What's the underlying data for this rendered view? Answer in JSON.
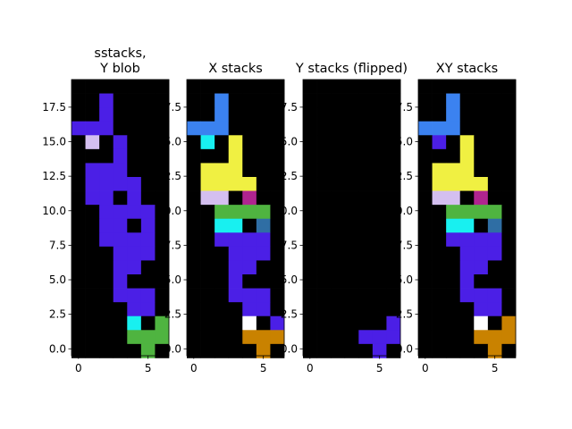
{
  "colors": {
    "background": "#000000",
    "purple": "#4b1fe6",
    "blue": "#3b82f0",
    "lavender": "#d4bff0",
    "cyan": "#18f0f0",
    "yellow": "#f0f042",
    "magenta": "#b0248f",
    "green": "#4fb440",
    "steel": "#2f6ea4",
    "white": "#ffffff",
    "orange": "#c98200"
  },
  "chart_data": [
    {
      "type": "heatmap",
      "title": "sstacks,\nY blob",
      "xticks": [
        "0",
        "5"
      ],
      "yticks": [
        "0.0",
        "2.5",
        "5.0",
        "7.5",
        "10.0",
        "12.5",
        "15.0",
        "17.5"
      ],
      "xlim": [
        -0.5,
        6.5
      ],
      "ylim": [
        19.5,
        -0.5
      ],
      "grid": [
        ".......",
        "..P....",
        "..P....",
        "PPP....",
        ".L.P...",
        "...P...",
        ".PPP...",
        ".PPPP..",
        ".PP.P..",
        "..PPPP.",
        "..PP.P.",
        "..PPPP.",
        "...PPP.",
        "...PP..",
        "...P...",
        "...PPP.",
        "....PP.",
        "....C.G",
        "....GGG",
        ".....G."
      ]
    },
    {
      "type": "heatmap",
      "title": "X stacks",
      "xticks": [
        "0",
        "5"
      ],
      "yticks": [
        "0.0",
        "2.5",
        "5.0",
        "7.5",
        "10.0",
        "12.5",
        "15.0",
        "17.5"
      ],
      "xlim": [
        -0.5,
        6.5
      ],
      "ylim": [
        19.5,
        -0.5
      ],
      "grid": [
        ".......",
        "..B....",
        "..B....",
        "BBB....",
        ".C.Y...",
        "...Y...",
        ".YYY...",
        ".YYYY..",
        ".LL.M..",
        "..GGGG.",
        "..CC.S.",
        "..PPPP.",
        "...PPP.",
        "...PP..",
        "...P...",
        "...PPP.",
        "....PP.",
        "....W.P",
        "....OOO",
        ".....O."
      ]
    },
    {
      "type": "heatmap",
      "title": "Y stacks (flipped)",
      "xticks": [
        "0",
        "5"
      ],
      "yticks": [
        "0.0",
        "2.5",
        "5.0",
        "7.5",
        "10.0",
        "12.5",
        "15.0",
        "17.5"
      ],
      "xlim": [
        -0.5,
        6.5
      ],
      "ylim": [
        19.5,
        -0.5
      ],
      "grid": [
        ".......",
        ".......",
        ".......",
        ".......",
        ".......",
        ".......",
        ".......",
        ".......",
        ".......",
        ".......",
        ".......",
        ".......",
        ".......",
        ".......",
        ".......",
        ".......",
        ".......",
        "......P",
        "....PPP",
        ".....P."
      ]
    },
    {
      "type": "heatmap",
      "title": "XY stacks",
      "xticks": [
        "0",
        "5"
      ],
      "yticks": [
        "0.0",
        "2.5",
        "5.0",
        "7.5",
        "10.0",
        "12.5",
        "15.0",
        "17.5"
      ],
      "xlim": [
        -0.5,
        6.5
      ],
      "ylim": [
        19.5,
        -0.5
      ],
      "grid": [
        ".......",
        "..B....",
        "..B....",
        "BBB....",
        ".P.Y...",
        "...Y...",
        ".YYY...",
        ".YYYY..",
        ".LL.M..",
        "..GGGG.",
        "..CC.S.",
        "..PPPP.",
        "...PPP.",
        "...PP..",
        "...P...",
        "...PPP.",
        "....PP.",
        "....W.O",
        "....OOO",
        ".....O."
      ]
    }
  ]
}
